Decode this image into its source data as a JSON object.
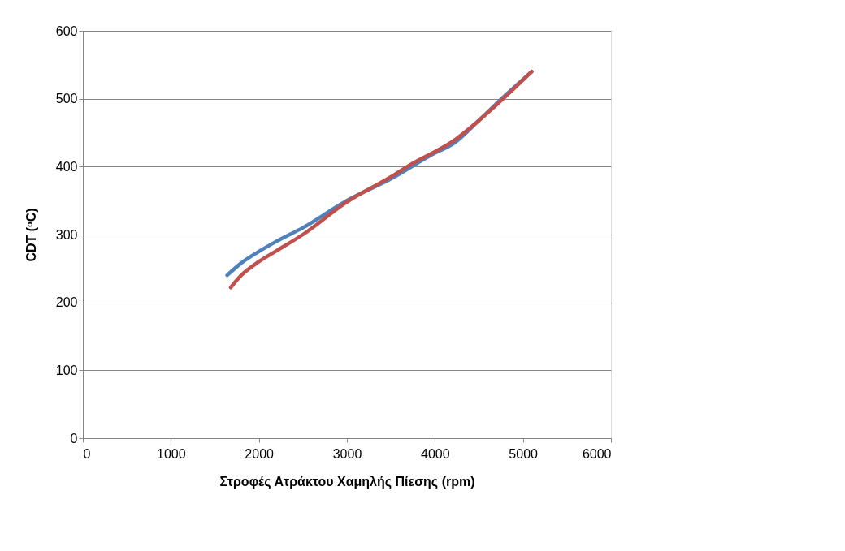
{
  "chart_data": {
    "type": "line",
    "xlabel": "Στροφές Ατράκτου Χαμηλής Πίεσης (rpm)",
    "ylabel": "CDT (ᵒC)",
    "xlim": [
      0,
      6000
    ],
    "xticks": [
      0,
      1000,
      2000,
      3000,
      4000,
      5000,
      6000
    ],
    "ylim": [
      0,
      600
    ],
    "yticks": [
      0,
      100,
      200,
      300,
      400,
      500,
      600
    ],
    "grid": "y",
    "marker": "none",
    "line_style": "solid",
    "series": [
      {
        "color": "#4f81bd",
        "x": [
          1640,
          1800,
          2000,
          2200,
          2500,
          3000,
          3500,
          4000,
          4200,
          4500,
          4800,
          5100
        ],
        "values": [
          240,
          258,
          275,
          290,
          310,
          350,
          382,
          420,
          433,
          468,
          505,
          540
        ]
      },
      {
        "color": "#c0504d",
        "x": [
          1680,
          1800,
          2000,
          2200,
          2500,
          3000,
          3500,
          3750,
          4000,
          4200,
          4500,
          4800,
          5100
        ],
        "values": [
          222,
          240,
          260,
          276,
          300,
          348,
          385,
          405,
          422,
          437,
          468,
          503,
          540
        ]
      }
    ]
  }
}
